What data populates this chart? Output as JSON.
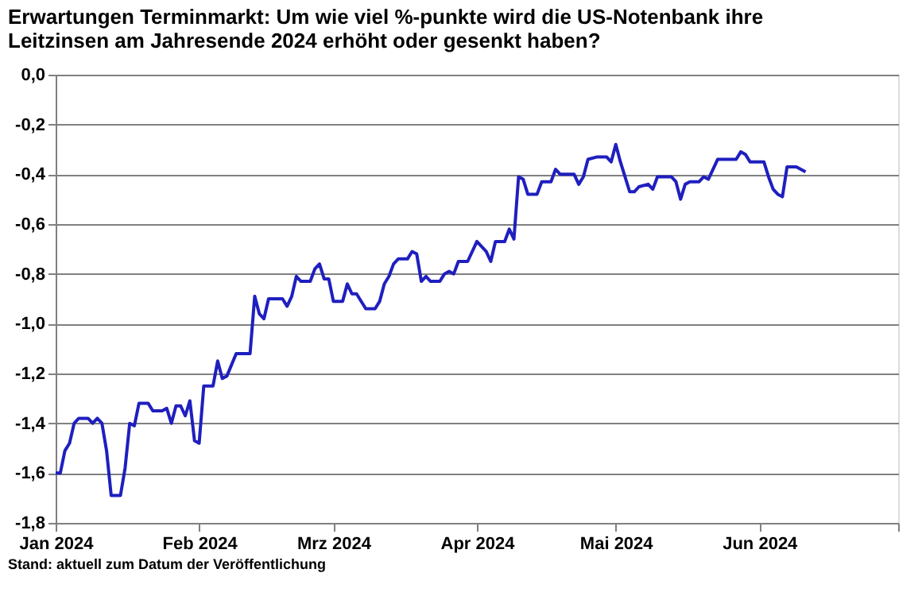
{
  "chart_data": {
    "type": "line",
    "title": [
      "Erwartungen Terminmarkt: Um wie viel %-punkte wird die US-Notenbank ihre",
      "Leitzinsen am Jahresende 2024 erhöht oder gesenkt haben?"
    ],
    "annotations": [
      "Stand: aktuell zum Datum der Veröffentlichung"
    ],
    "x": [
      "2024-01-01",
      "2024-01-02",
      "2024-01-03",
      "2024-01-04",
      "2024-01-05",
      "2024-01-06",
      "2024-01-08",
      "2024-01-09",
      "2024-01-10",
      "2024-01-11",
      "2024-01-12",
      "2024-01-13",
      "2024-01-15",
      "2024-01-16",
      "2024-01-17",
      "2024-01-18",
      "2024-01-19",
      "2024-01-21",
      "2024-01-22",
      "2024-01-24",
      "2024-01-25",
      "2024-01-26",
      "2024-01-27",
      "2024-01-28",
      "2024-01-29",
      "2024-01-30",
      "2024-01-31",
      "2024-02-01",
      "2024-02-02",
      "2024-02-04",
      "2024-02-05",
      "2024-02-06",
      "2024-02-07",
      "2024-02-09",
      "2024-02-11",
      "2024-02-12",
      "2024-02-13",
      "2024-02-14",
      "2024-02-15",
      "2024-02-16",
      "2024-02-19",
      "2024-02-20",
      "2024-02-21",
      "2024-02-22",
      "2024-02-23",
      "2024-02-25",
      "2024-02-26",
      "2024-02-27",
      "2024-02-28",
      "2024-02-29",
      "2024-03-01",
      "2024-03-03",
      "2024-03-04",
      "2024-03-05",
      "2024-03-06",
      "2024-03-08",
      "2024-03-10",
      "2024-03-11",
      "2024-03-12",
      "2024-03-13",
      "2024-03-14",
      "2024-03-15",
      "2024-03-17",
      "2024-03-18",
      "2024-03-19",
      "2024-03-20",
      "2024-03-21",
      "2024-03-22",
      "2024-03-24",
      "2024-03-25",
      "2024-03-26",
      "2024-03-27",
      "2024-03-28",
      "2024-03-30",
      "2024-04-01",
      "2024-04-02",
      "2024-04-03",
      "2024-04-04",
      "2024-04-05",
      "2024-04-07",
      "2024-04-08",
      "2024-04-09",
      "2024-04-10",
      "2024-04-11",
      "2024-04-12",
      "2024-04-14",
      "2024-04-15",
      "2024-04-17",
      "2024-04-18",
      "2024-04-19",
      "2024-04-22",
      "2024-04-23",
      "2024-04-24",
      "2024-04-25",
      "2024-04-27",
      "2024-04-29",
      "2024-04-30",
      "2024-05-01",
      "2024-05-02",
      "2024-05-04",
      "2024-05-05",
      "2024-05-06",
      "2024-05-08",
      "2024-05-09",
      "2024-05-10",
      "2024-05-13",
      "2024-05-14",
      "2024-05-15",
      "2024-05-16",
      "2024-05-17",
      "2024-05-19",
      "2024-05-20",
      "2024-05-21",
      "2024-05-22",
      "2024-05-23",
      "2024-05-27",
      "2024-05-28",
      "2024-05-29",
      "2024-05-30",
      "2024-06-02",
      "2024-06-03",
      "2024-06-04",
      "2024-06-05",
      "2024-06-06",
      "2024-06-07",
      "2024-06-09",
      "2024-06-11"
    ],
    "series": [
      {
        "color": "#1f1fbf",
        "values": [
          -1.6,
          -1.6,
          -1.51,
          -1.48,
          -1.4,
          -1.38,
          -1.38,
          -1.4,
          -1.38,
          -1.4,
          -1.51,
          -1.69,
          -1.69,
          -1.58,
          -1.4,
          -1.41,
          -1.32,
          -1.32,
          -1.35,
          -1.35,
          -1.34,
          -1.4,
          -1.33,
          -1.33,
          -1.37,
          -1.31,
          -1.47,
          -1.48,
          -1.25,
          -1.25,
          -1.15,
          -1.22,
          -1.21,
          -1.12,
          -1.12,
          -1.12,
          -0.89,
          -0.96,
          -0.98,
          -0.9,
          -0.9,
          -0.93,
          -0.89,
          -0.81,
          -0.83,
          -0.83,
          -0.78,
          -0.76,
          -0.82,
          -0.82,
          -0.91,
          -0.91,
          -0.84,
          -0.88,
          -0.88,
          -0.94,
          -0.94,
          -0.91,
          -0.84,
          -0.81,
          -0.76,
          -0.74,
          -0.74,
          -0.71,
          -0.72,
          -0.83,
          -0.81,
          -0.83,
          -0.83,
          -0.8,
          -0.79,
          -0.8,
          -0.75,
          -0.75,
          -0.67,
          -0.69,
          -0.71,
          -0.75,
          -0.67,
          -0.67,
          -0.62,
          -0.66,
          -0.41,
          -0.42,
          -0.48,
          -0.48,
          -0.43,
          -0.43,
          -0.38,
          -0.4,
          -0.4,
          -0.44,
          -0.41,
          -0.34,
          -0.33,
          -0.33,
          -0.35,
          -0.28,
          -0.35,
          -0.47,
          -0.47,
          -0.45,
          -0.44,
          -0.46,
          -0.41,
          -0.41,
          -0.43,
          -0.5,
          -0.44,
          -0.43,
          -0.43,
          -0.41,
          -0.42,
          -0.38,
          -0.34,
          -0.34,
          -0.31,
          -0.32,
          -0.35,
          -0.35,
          -0.41,
          -0.46,
          -0.48,
          -0.49,
          -0.37,
          -0.37,
          -0.39
        ]
      }
    ],
    "xlim": [
      "2024-01-01",
      "2024-07-01"
    ],
    "xticks": [
      {
        "value": "2024-01-01",
        "label": "Jan 2024"
      },
      {
        "value": "2024-02-01",
        "label": "Feb 2024"
      },
      {
        "value": "2024-03-01",
        "label": "Mrz 2024"
      },
      {
        "value": "2024-04-01",
        "label": "Apr 2024"
      },
      {
        "value": "2024-05-01",
        "label": "Mai 2024"
      },
      {
        "value": "2024-06-01",
        "label": "Jun 2024"
      },
      {
        "value": "2024-07-01",
        "label": null
      }
    ],
    "ylim": [
      -1.8,
      0
    ],
    "yticks": [
      {
        "value": -1.8,
        "label": "-1,8"
      },
      {
        "value": -1.6,
        "label": "-1,6"
      },
      {
        "value": -1.4,
        "label": "-1,4"
      },
      {
        "value": -1.2,
        "label": "-1,2"
      },
      {
        "value": -1,
        "label": "-1,0"
      },
      {
        "value": -0.8,
        "label": "-0,8"
      },
      {
        "value": -0.6,
        "label": "-0,6"
      },
      {
        "value": -0.4,
        "label": "-0,4"
      },
      {
        "value": -0.2,
        "label": "-0,2"
      },
      {
        "value": 0,
        "label": "0,0"
      }
    ],
    "grid": "y",
    "line_style": "solid",
    "marker": "none"
  }
}
